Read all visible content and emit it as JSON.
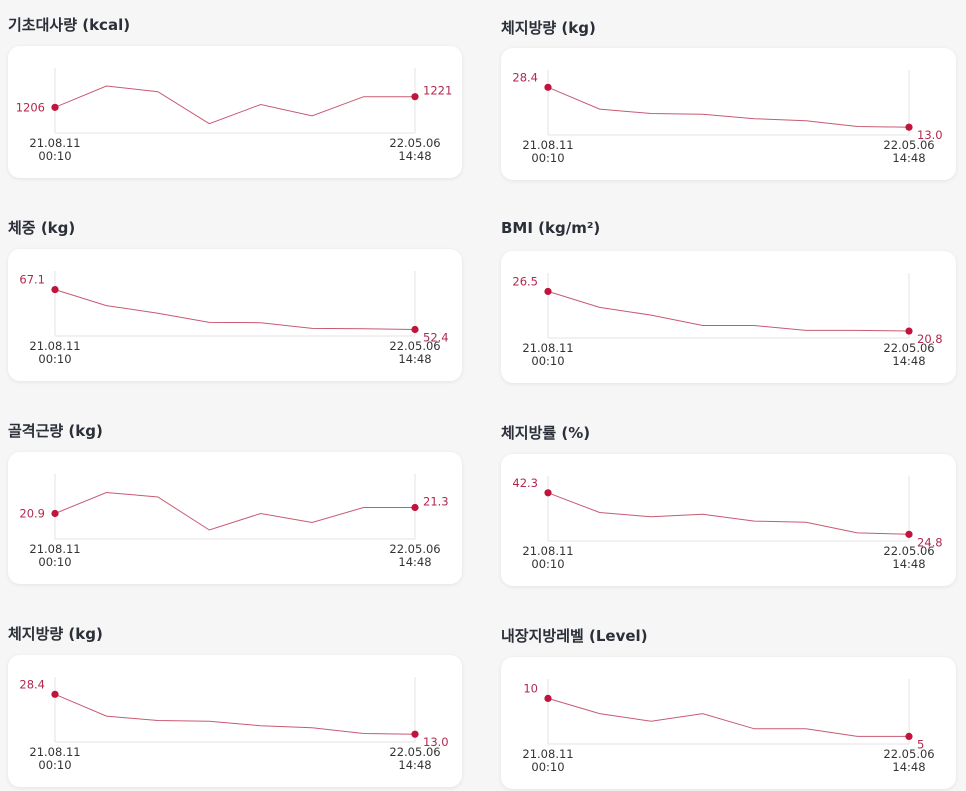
{
  "colors": {
    "line": "#c75a72",
    "point": "#c0143c",
    "label": "#b2294e",
    "axis": "#e3e3e3"
  },
  "chart_data": [
    {
      "type": "line",
      "title": "기초대사량 (kcal)",
      "x": [
        "21.08.11 00:10",
        "",
        "",
        "",
        "",
        "",
        "",
        "22.05.06 14:48"
      ],
      "values": [
        1206,
        1236,
        1228,
        1183,
        1210,
        1194,
        1221,
        1221
      ],
      "ylim": [
        1170,
        1250
      ],
      "first_label": "1206",
      "last_label": "1221",
      "start_date": "21.08.11",
      "start_time": "00:10",
      "end_date": "22.05.06",
      "end_time": "14:48"
    },
    {
      "type": "line",
      "title": "체지방량 (kg)",
      "x": [
        "21.08.11 00:10",
        "",
        "",
        "",
        "",
        "",
        "",
        "22.05.06 14:48"
      ],
      "values": [
        28.4,
        20.0,
        18.3,
        18.0,
        16.3,
        15.5,
        13.3,
        13.0
      ],
      "ylim": [
        10,
        32
      ],
      "first_label": "28.4",
      "last_label": "13.0",
      "start_date": "21.08.11",
      "start_time": "00:10",
      "end_date": "22.05.06",
      "end_time": "14:48"
    },
    {
      "type": "line",
      "title": "체중 (kg)",
      "x": [
        "21.08.11 00:10",
        "",
        "",
        "",
        "",
        "",
        "",
        "22.05.06 14:48"
      ],
      "values": [
        67.1,
        61.2,
        58.4,
        55.0,
        54.9,
        52.8,
        52.7,
        52.4
      ],
      "ylim": [
        50,
        71
      ],
      "first_label": "67.1",
      "last_label": "52.4",
      "start_date": "21.08.11",
      "start_time": "00:10",
      "end_date": "22.05.06",
      "end_time": "14:48"
    },
    {
      "type": "line",
      "title": "BMI (kg/m²)",
      "x": [
        "21.08.11 00:10",
        "",
        "",
        "",
        "",
        "",
        "",
        "22.05.06 14:48"
      ],
      "values": [
        26.5,
        24.2,
        23.1,
        21.6,
        21.6,
        20.9,
        20.9,
        20.8
      ],
      "ylim": [
        19.8,
        28.0
      ],
      "first_label": "26.5",
      "last_label": "20.8",
      "start_date": "21.08.11",
      "start_time": "00:10",
      "end_date": "22.05.06",
      "end_time": "14:48"
    },
    {
      "type": "line",
      "title": "골격근량 (kg)",
      "x": [
        "21.08.11 00:10",
        "",
        "",
        "",
        "",
        "",
        "",
        "22.05.06 14:48"
      ],
      "values": [
        20.9,
        22.3,
        22.0,
        19.8,
        20.9,
        20.3,
        21.3,
        21.3
      ],
      "ylim": [
        19.2,
        23.0
      ],
      "first_label": "20.9",
      "last_label": "21.3",
      "start_date": "21.08.11",
      "start_time": "00:10",
      "end_date": "22.05.06",
      "end_time": "14:48"
    },
    {
      "type": "line",
      "title": "체지방률 (%)",
      "x": [
        "21.08.11 00:10",
        "",
        "",
        "",
        "",
        "",
        "",
        "22.05.06 14:48"
      ],
      "values": [
        42.3,
        34.0,
        32.2,
        33.3,
        30.4,
        29.9,
        25.4,
        24.8
      ],
      "ylim": [
        22,
        46
      ],
      "first_label": "42.3",
      "last_label": "24.8",
      "start_date": "21.08.11",
      "start_time": "00:10",
      "end_date": "22.05.06",
      "end_time": "14:48"
    },
    {
      "type": "line",
      "title": "체지방량 (kg)",
      "x": [
        "21.08.11 00:10",
        "",
        "",
        "",
        "",
        "",
        "",
        "22.05.06 14:48"
      ],
      "values": [
        28.4,
        20.0,
        18.3,
        18.0,
        16.3,
        15.5,
        13.3,
        13.0
      ],
      "ylim": [
        10,
        32
      ],
      "first_label": "28.4",
      "last_label": "13.0",
      "start_date": "21.08.11",
      "start_time": "00:10",
      "end_date": "22.05.06",
      "end_time": "14:48"
    },
    {
      "type": "line",
      "title": "내장지방레벨 (Level)",
      "x": [
        "21.08.11 00:10",
        "",
        "",
        "",
        "",
        "",
        "",
        "22.05.06 14:48"
      ],
      "values": [
        10,
        8,
        7,
        8,
        6,
        6,
        5,
        5
      ],
      "ylim": [
        4,
        11.5
      ],
      "first_label": "10",
      "last_label": "5",
      "start_date": "21.08.11",
      "start_time": "00:10",
      "end_date": "22.05.06",
      "end_time": "14:48"
    }
  ]
}
